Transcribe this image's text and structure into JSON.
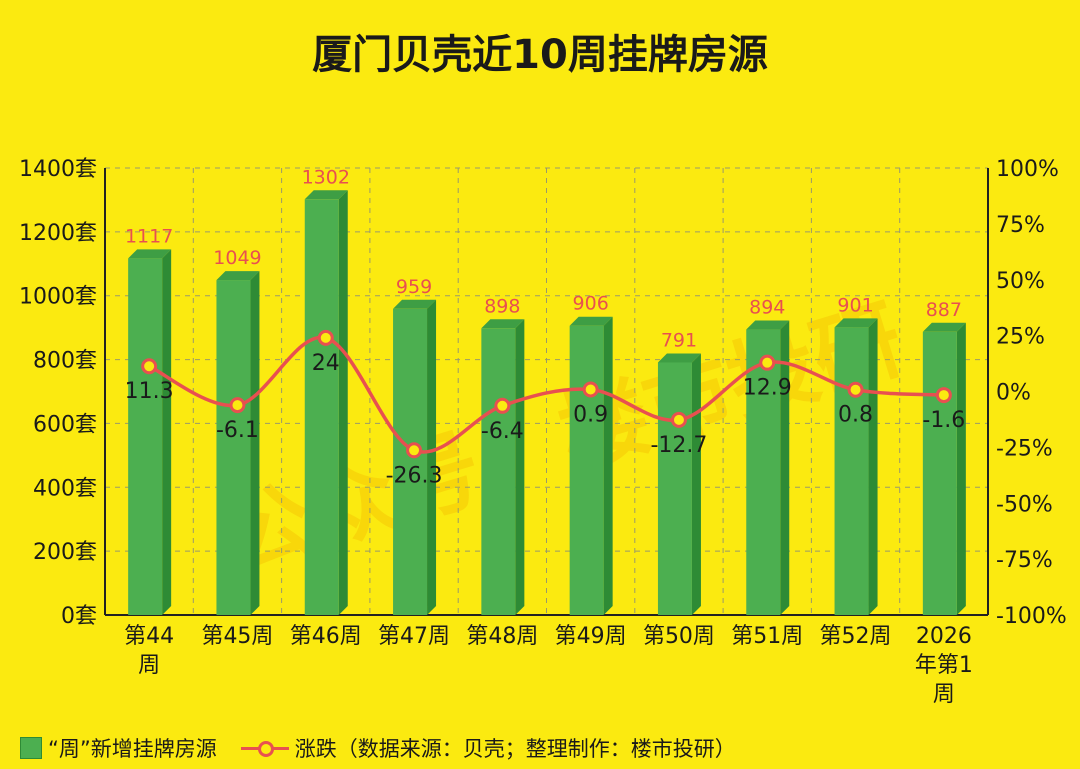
{
  "chart_data": {
    "type": "bar",
    "title": "厦门贝壳近10周挂牌房源",
    "categories": [
      "第44周",
      "第45周",
      "第46周",
      "第47周",
      "第48周",
      "第49周",
      "第50周",
      "第51周",
      "第52周",
      "2026年第1周"
    ],
    "category_lines": [
      [
        "第44",
        "周"
      ],
      [
        "第45周"
      ],
      [
        "第46周"
      ],
      [
        "第47周"
      ],
      [
        "第48周"
      ],
      [
        "第49周"
      ],
      [
        "第50周"
      ],
      [
        "第51周"
      ],
      [
        "第52周"
      ],
      [
        "2026",
        "年第1",
        "周"
      ]
    ],
    "series": [
      {
        "name": "“周”新增挂牌房源",
        "type": "bar",
        "axis": "left",
        "values": [
          1117,
          1049,
          1302,
          959,
          898,
          906,
          791,
          894,
          901,
          887
        ],
        "labels": [
          "1117",
          "1049",
          "1302",
          "959",
          "898",
          "906",
          "791",
          "894",
          "901",
          "887"
        ],
        "color": "#4CAF50"
      },
      {
        "name": "涨跌",
        "type": "line",
        "axis": "right",
        "values": [
          11.3,
          -6.1,
          24,
          -26.3,
          -6.4,
          0.9,
          -12.7,
          12.9,
          0.8,
          -1.6
        ],
        "labels": [
          "11.3",
          "-6.1",
          "24",
          "-26.3",
          "-6.4",
          "0.9",
          "-12.7",
          "12.9",
          "0.8",
          "-1.6"
        ],
        "color": "#E85050"
      }
    ],
    "ylim_left": [
      0,
      1400
    ],
    "yticks_left": [
      "0套",
      "200套",
      "400套",
      "600套",
      "800套",
      "1000套",
      "1200套",
      "1400套"
    ],
    "ylim_right": [
      -100,
      100
    ],
    "yticks_right": [
      "-100%",
      "-75%",
      "-50%",
      "-25%",
      "0%",
      "25%",
      "50%",
      "75%",
      "100%"
    ],
    "grid": true,
    "legend_position": "bottom-left"
  },
  "legend": {
    "bar_label": "“周”新增挂牌房源",
    "line_label": "涨跌（数据来源：贝壳；整理制作：楼市投研）"
  },
  "watermark": "公众号：楼市投研",
  "colors": {
    "background": "#FBEA10",
    "bar": "#4CAF50",
    "line": "#E85050",
    "bar_label": "#E85050"
  }
}
